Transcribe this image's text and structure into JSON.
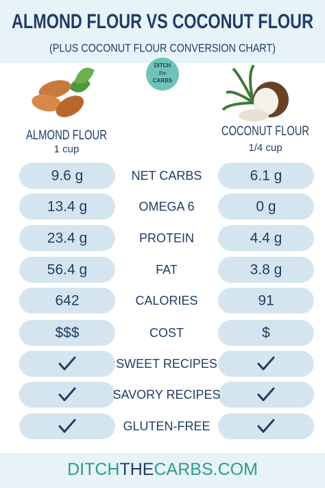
{
  "header": {
    "title": "ALMOND FLOUR VS COCONUT FLOUR",
    "subtitle": "(PLUS COCONUT FLOUR CONVERSION CHART)"
  },
  "logo": [
    "DITCH",
    "the",
    "CARBS"
  ],
  "columns": {
    "left": {
      "name": "ALMOND FLOUR",
      "amount": "1 cup"
    },
    "right": {
      "name": "COCONUT FLOUR",
      "amount": "1/4 cup"
    }
  },
  "rows": [
    {
      "left": "9.6 g",
      "label": "NET CARBS",
      "right": "6.1 g"
    },
    {
      "left": "13.4 g",
      "label": "OMEGA 6",
      "right": "0 g"
    },
    {
      "left": "23.4 g",
      "label": "PROTEIN",
      "right": "4.4 g"
    },
    {
      "left": "56.4 g",
      "label": "FAT",
      "right": "3.8 g"
    },
    {
      "left": "642",
      "label": "CALORIES",
      "right": "91"
    },
    {
      "left": "$$$",
      "label": "COST",
      "right": "$"
    },
    {
      "label": "SWEET RECIPES"
    },
    {
      "label": "SAVORY RECIPES"
    },
    {
      "label": "GLUTEN-FREE"
    }
  ],
  "footer": [
    "DITCH",
    "THE",
    "CARBS.COM"
  ]
}
